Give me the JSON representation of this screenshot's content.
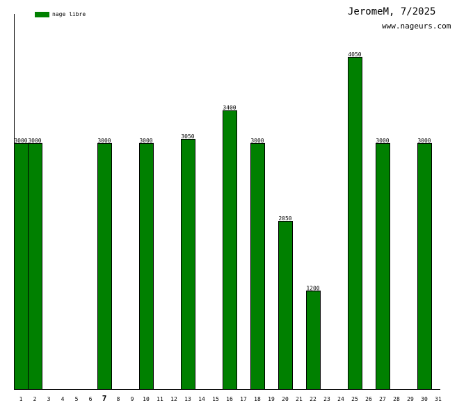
{
  "chart_data": {
    "type": "bar",
    "title": "JeromeM, 7/2025",
    "subtitle": "www.nageurs.com",
    "legend": [
      {
        "name": "nage libre",
        "color": "#008000"
      }
    ],
    "legend_position": "top-left",
    "categories": [
      "1",
      "2",
      "3",
      "4",
      "5",
      "6",
      "7",
      "8",
      "9",
      "10",
      "11",
      "12",
      "13",
      "14",
      "15",
      "16",
      "17",
      "18",
      "19",
      "20",
      "21",
      "22",
      "23",
      "24",
      "25",
      "26",
      "27",
      "28",
      "29",
      "30",
      "31"
    ],
    "highlight_category": "7",
    "series": [
      {
        "name": "nage libre",
        "color": "#008000",
        "values": [
          3000,
          3000,
          null,
          null,
          null,
          null,
          3000,
          null,
          null,
          3000,
          null,
          null,
          3050,
          null,
          null,
          3400,
          null,
          3000,
          null,
          2050,
          null,
          1200,
          null,
          null,
          4050,
          null,
          3000,
          null,
          null,
          3000,
          null
        ]
      }
    ],
    "ylim": [
      0,
      4600
    ],
    "grid": false
  }
}
